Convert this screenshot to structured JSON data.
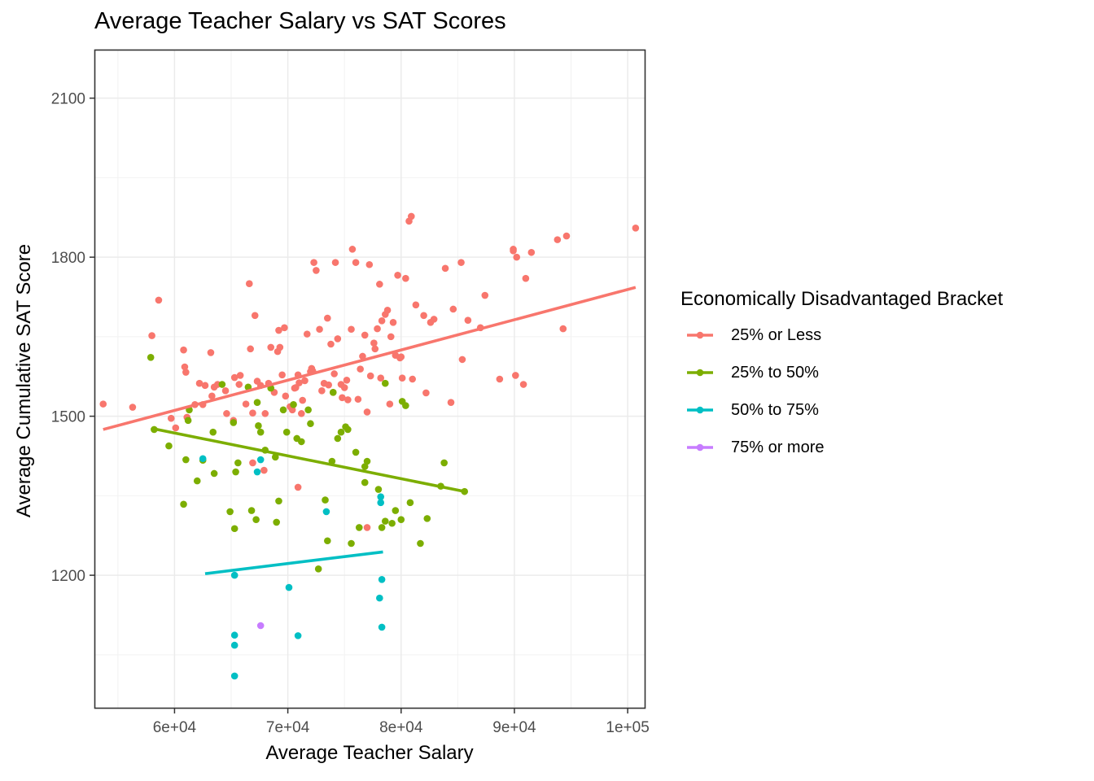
{
  "chart_data": {
    "type": "scatter",
    "title": "Average Teacher Salary vs SAT Scores",
    "xlabel": "Average Teacher Salary",
    "ylabel": "Average Cumulative SAT Score",
    "xlim": [
      53000,
      101500
    ],
    "ylim": [
      950,
      2190
    ],
    "x_ticks": [
      60000,
      70000,
      80000,
      90000,
      100000
    ],
    "x_tick_labels": [
      "6e+04",
      "7e+04",
      "8e+04",
      "9e+04",
      "1e+05"
    ],
    "y_ticks": [
      1200,
      1500,
      1800,
      2100
    ],
    "y_tick_labels": [
      "1200",
      "1500",
      "1800",
      "2100"
    ],
    "grid": true,
    "legend": {
      "title": "Economically Disadvantaged Bracket",
      "position": "right"
    },
    "series": [
      {
        "name": "25% or Less",
        "color": "#F8766D",
        "fit": [
          [
            53700,
            1475
          ],
          [
            100700,
            1743
          ]
        ],
        "points": [
          [
            53700,
            1523
          ],
          [
            56300,
            1517
          ],
          [
            58000,
            1652
          ],
          [
            58600,
            1719
          ],
          [
            59700,
            1496
          ],
          [
            60100,
            1478
          ],
          [
            60800,
            1625
          ],
          [
            60900,
            1593
          ],
          [
            61000,
            1583
          ],
          [
            61100,
            1498
          ],
          [
            61800,
            1522
          ],
          [
            62200,
            1562
          ],
          [
            62500,
            1522
          ],
          [
            62700,
            1558
          ],
          [
            63200,
            1620
          ],
          [
            63300,
            1538
          ],
          [
            63500,
            1555
          ],
          [
            63800,
            1560
          ],
          [
            64500,
            1548
          ],
          [
            64600,
            1505
          ],
          [
            65200,
            1492
          ],
          [
            65300,
            1573
          ],
          [
            65700,
            1560
          ],
          [
            65800,
            1577
          ],
          [
            66300,
            1523
          ],
          [
            66600,
            1750
          ],
          [
            66700,
            1627
          ],
          [
            66900,
            1506
          ],
          [
            67100,
            1690
          ],
          [
            67300,
            1566
          ],
          [
            67600,
            1558
          ],
          [
            68000,
            1505
          ],
          [
            68300,
            1562
          ],
          [
            68500,
            1630
          ],
          [
            68800,
            1545
          ],
          [
            69100,
            1622
          ],
          [
            69200,
            1662
          ],
          [
            69300,
            1630
          ],
          [
            69500,
            1578
          ],
          [
            69700,
            1667
          ],
          [
            69800,
            1538
          ],
          [
            70200,
            1518
          ],
          [
            70400,
            1512
          ],
          [
            70600,
            1553
          ],
          [
            70700,
            1554
          ],
          [
            70900,
            1578
          ],
          [
            71000,
            1563
          ],
          [
            71200,
            1505
          ],
          [
            71300,
            1530
          ],
          [
            71500,
            1567
          ],
          [
            71700,
            1655
          ],
          [
            72000,
            1584
          ],
          [
            72100,
            1590
          ],
          [
            72200,
            1585
          ],
          [
            72300,
            1790
          ],
          [
            72500,
            1775
          ],
          [
            72800,
            1664
          ],
          [
            73000,
            1548
          ],
          [
            73200,
            1562
          ],
          [
            73500,
            1685
          ],
          [
            73600,
            1559
          ],
          [
            73800,
            1636
          ],
          [
            74000,
            1545
          ],
          [
            74100,
            1580
          ],
          [
            74200,
            1790
          ],
          [
            74400,
            1646
          ],
          [
            74700,
            1560
          ],
          [
            74800,
            1535
          ],
          [
            75000,
            1554
          ],
          [
            75200,
            1568
          ],
          [
            75300,
            1531
          ],
          [
            75600,
            1664
          ],
          [
            75700,
            1815
          ],
          [
            76000,
            1790
          ],
          [
            76200,
            1532
          ],
          [
            76400,
            1589
          ],
          [
            76600,
            1613
          ],
          [
            76800,
            1653
          ],
          [
            77000,
            1508
          ],
          [
            77200,
            1786
          ],
          [
            77300,
            1576
          ],
          [
            77600,
            1638
          ],
          [
            77700,
            1627
          ],
          [
            77900,
            1665
          ],
          [
            78100,
            1749
          ],
          [
            78200,
            1572
          ],
          [
            78300,
            1680
          ],
          [
            78600,
            1692
          ],
          [
            78800,
            1700
          ],
          [
            79000,
            1523
          ],
          [
            79100,
            1650
          ],
          [
            79300,
            1677
          ],
          [
            79500,
            1615
          ],
          [
            79700,
            1766
          ],
          [
            79900,
            1610
          ],
          [
            80000,
            1612
          ],
          [
            80100,
            1572
          ],
          [
            80400,
            1760
          ],
          [
            80700,
            1868
          ],
          [
            80900,
            1877
          ],
          [
            81000,
            1570
          ],
          [
            81300,
            1710
          ],
          [
            82000,
            1690
          ],
          [
            82200,
            1544
          ],
          [
            82600,
            1677
          ],
          [
            82900,
            1683
          ],
          [
            83900,
            1779
          ],
          [
            84400,
            1526
          ],
          [
            84600,
            1702
          ],
          [
            85300,
            1790
          ],
          [
            85400,
            1607
          ],
          [
            85900,
            1681
          ],
          [
            87000,
            1667
          ],
          [
            87400,
            1728
          ],
          [
            88700,
            1570
          ],
          [
            89900,
            1812
          ],
          [
            89900,
            1815
          ],
          [
            90100,
            1577
          ],
          [
            90200,
            1800
          ],
          [
            90800,
            1560
          ],
          [
            91000,
            1760
          ],
          [
            91500,
            1809
          ],
          [
            93800,
            1833
          ],
          [
            94300,
            1665
          ],
          [
            94600,
            1840
          ],
          [
            100700,
            1855
          ],
          [
            66900,
            1412
          ],
          [
            67900,
            1398
          ],
          [
            70900,
            1366
          ],
          [
            77000,
            1290
          ]
        ]
      },
      {
        "name": "25% to 50%",
        "color": "#7CAE00",
        "fit": [
          [
            58000,
            1477
          ],
          [
            85600,
            1358
          ]
        ],
        "points": [
          [
            57900,
            1611
          ],
          [
            58200,
            1475
          ],
          [
            59500,
            1444
          ],
          [
            60800,
            1334
          ],
          [
            61000,
            1418
          ],
          [
            61200,
            1492
          ],
          [
            61300,
            1512
          ],
          [
            62000,
            1378
          ],
          [
            62500,
            1417
          ],
          [
            63400,
            1470
          ],
          [
            63500,
            1392
          ],
          [
            64200,
            1560
          ],
          [
            64900,
            1320
          ],
          [
            65200,
            1488
          ],
          [
            65300,
            1288
          ],
          [
            65400,
            1395
          ],
          [
            65600,
            1412
          ],
          [
            66500,
            1555
          ],
          [
            66800,
            1322
          ],
          [
            67200,
            1305
          ],
          [
            67300,
            1526
          ],
          [
            67400,
            1482
          ],
          [
            67600,
            1470
          ],
          [
            68000,
            1436
          ],
          [
            68500,
            1553
          ],
          [
            68900,
            1423
          ],
          [
            69000,
            1300
          ],
          [
            69200,
            1340
          ],
          [
            69600,
            1512
          ],
          [
            69900,
            1470
          ],
          [
            70500,
            1522
          ],
          [
            70800,
            1458
          ],
          [
            71200,
            1452
          ],
          [
            71800,
            1512
          ],
          [
            72000,
            1486
          ],
          [
            72700,
            1212
          ],
          [
            73300,
            1342
          ],
          [
            73500,
            1265
          ],
          [
            73900,
            1415
          ],
          [
            74400,
            1458
          ],
          [
            74700,
            1470
          ],
          [
            75100,
            1480
          ],
          [
            75300,
            1475
          ],
          [
            75600,
            1260
          ],
          [
            76000,
            1432
          ],
          [
            76300,
            1290
          ],
          [
            76800,
            1405
          ],
          [
            77000,
            1415
          ],
          [
            78000,
            1362
          ],
          [
            78300,
            1290
          ],
          [
            78600,
            1302
          ],
          [
            79200,
            1298
          ],
          [
            79500,
            1322
          ],
          [
            80000,
            1305
          ],
          [
            80100,
            1528
          ],
          [
            80400,
            1520
          ],
          [
            80800,
            1337
          ],
          [
            81700,
            1260
          ],
          [
            82300,
            1307
          ],
          [
            83500,
            1368
          ],
          [
            83800,
            1412
          ],
          [
            85600,
            1358
          ],
          [
            76800,
            1375
          ],
          [
            74000,
            1545
          ],
          [
            78600,
            1562
          ]
        ]
      },
      {
        "name": "50% to 75%",
        "color": "#00BFC4",
        "fit": [
          [
            62700,
            1203
          ],
          [
            78400,
            1244
          ]
        ],
        "points": [
          [
            62500,
            1420
          ],
          [
            65300,
            1200
          ],
          [
            65300,
            1087
          ],
          [
            65300,
            1068
          ],
          [
            65300,
            1010
          ],
          [
            67300,
            1395
          ],
          [
            67600,
            1418
          ],
          [
            70100,
            1177
          ],
          [
            70900,
            1086
          ],
          [
            73400,
            1320
          ],
          [
            78100,
            1157
          ],
          [
            78200,
            1348
          ],
          [
            78200,
            1337
          ],
          [
            78300,
            1192
          ],
          [
            78300,
            1102
          ]
        ]
      },
      {
        "name": "75% or more",
        "color": "#C77CFF",
        "points": [
          [
            67600,
            1105
          ]
        ]
      }
    ]
  }
}
